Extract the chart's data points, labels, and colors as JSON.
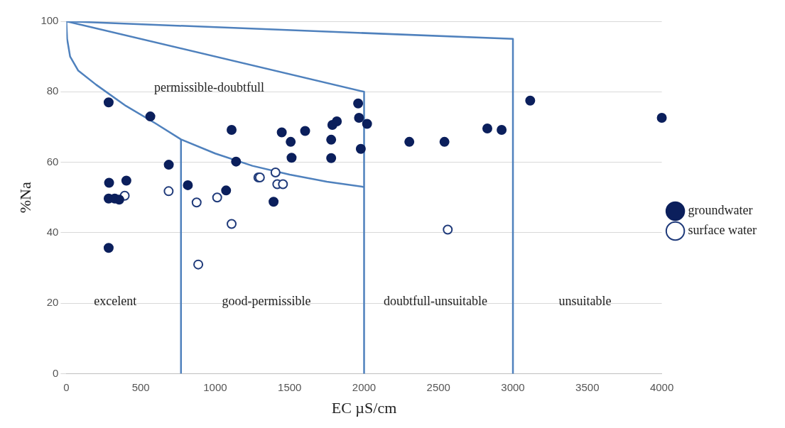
{
  "chart_data": {
    "type": "scatter",
    "xlabel": "EC µS/cm",
    "ylabel": "%Na",
    "xlim": [
      0,
      4000
    ],
    "xticks": [
      0,
      500,
      1000,
      1500,
      2000,
      2500,
      3000,
      3500,
      4000
    ],
    "ylim": [
      0,
      100
    ],
    "yticks": [
      0,
      20,
      40,
      60,
      80,
      100
    ],
    "grid": "y",
    "legend": "right",
    "marker": "circle",
    "series": [
      {
        "name": "groundwater",
        "color": "#0b1f5c",
        "x": [
          284,
          564,
          1110,
          1447,
          1507,
          1513,
          1140,
          688,
          287,
          403,
          816,
          1073,
          284,
          325,
          355,
          1392,
          284,
          1604,
          1787,
          1817,
          1779,
          1779,
          1960,
          1966,
          2020,
          1978,
          2304,
          2540,
          2828,
          2924,
          3116,
          4000
        ],
        "values": [
          77,
          73,
          69.2,
          68.5,
          65.8,
          61.3,
          60.2,
          59.3,
          54.2,
          54.8,
          53.5,
          52,
          49.7,
          49.7,
          49.4,
          48.8,
          35.7,
          68.9,
          70.6,
          71.6,
          66.4,
          61.2,
          76.7,
          72.6,
          70.9,
          63.8,
          65.8,
          65.8,
          69.6,
          69.2,
          77.5,
          72.6
        ]
      },
      {
        "name": "surface water",
        "color": "#1f3a7a",
        "x": [
          392,
          687,
          875,
          1013,
          1110,
          886,
          1290,
          1300,
          1405,
          1417,
          1455,
          2562
        ],
        "values": [
          50.5,
          51.8,
          48.6,
          50,
          42.5,
          31,
          55.7,
          55.7,
          57.1,
          53.8,
          53.8,
          40.9
        ]
      },
      {
        "type": "line",
        "marker": "none",
        "color": "#4f81bd",
        "x": [
          0,
          5,
          25,
          80,
          200,
          400,
          600,
          770,
          1000,
          1250,
          1500,
          1750,
          2000
        ],
        "values": [
          100,
          95,
          90,
          86,
          82,
          76,
          71,
          66.5,
          62.5,
          59,
          56.5,
          54.5,
          53
        ]
      },
      {
        "type": "line",
        "marker": "none",
        "color": "#4f81bd",
        "x": [
          770,
          770
        ],
        "values": [
          0,
          66.5
        ]
      },
      {
        "type": "line",
        "marker": "none",
        "color": "#4f81bd",
        "x": [
          0,
          2000,
          2000
        ],
        "values": [
          100,
          80,
          0
        ]
      },
      {
        "type": "line",
        "marker": "none",
        "color": "#4f81bd",
        "x": [
          0,
          3000,
          3000
        ],
        "values": [
          100,
          95,
          0
        ]
      }
    ],
    "annotations": [
      "permissible-doubtfull",
      "excelent",
      "good-permissible",
      "doubtfull-unsuitable",
      "unsuitable"
    ]
  }
}
